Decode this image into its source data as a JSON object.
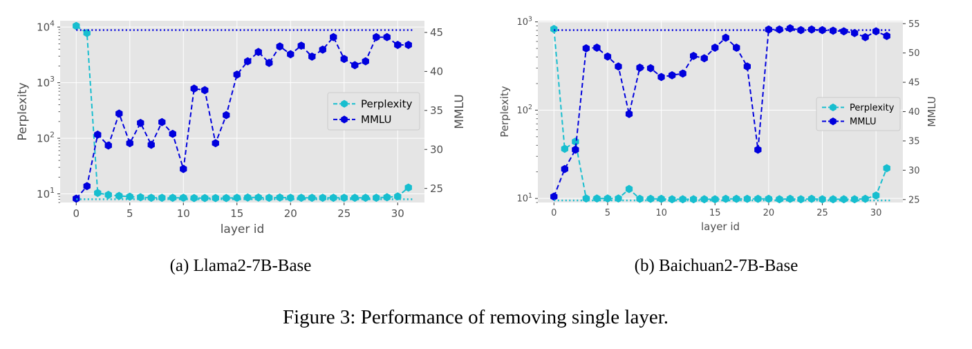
{
  "figure": {
    "caption": "Figure 3: Performance of removing single layer."
  },
  "colors": {
    "panel_bg": "#e5e5e5",
    "grid": "#ffffff",
    "perplexity": "#17becf",
    "mmlu": "#0000dd"
  },
  "chart_data": [
    {
      "type": "line",
      "subcaption": "(a) Llama2-7B-Base",
      "xlabel": "layer id",
      "ylabel_left": "Perplexity",
      "ylabel_right": "MMLU",
      "xticks": [
        0,
        5,
        10,
        15,
        20,
        25,
        30
      ],
      "xlim": [
        -1.5,
        32.5
      ],
      "left_scale": "log",
      "ylim_left": [
        7,
        13000
      ],
      "yticks_left": [
        {
          "value": 10,
          "base": "10",
          "exp": "1"
        },
        {
          "value": 100,
          "base": "10",
          "exp": "2"
        },
        {
          "value": 1000,
          "base": "10",
          "exp": "3"
        },
        {
          "value": 10000,
          "base": "10",
          "exp": "4"
        }
      ],
      "ylim_right": [
        23.2,
        46.5
      ],
      "yticks_right": [
        25,
        30,
        35,
        40,
        45
      ],
      "grid": true,
      "legend_position": "center-right",
      "series": [
        {
          "name": "Perplexity",
          "axis": "left",
          "style": "dashed",
          "marker": "hexagon",
          "x": [
            0,
            1,
            2,
            3,
            4,
            5,
            6,
            7,
            8,
            9,
            10,
            11,
            12,
            13,
            14,
            15,
            16,
            17,
            18,
            19,
            20,
            21,
            22,
            23,
            24,
            25,
            26,
            27,
            28,
            29,
            30,
            31
          ],
          "values": [
            10500,
            7800,
            10.4,
            9.6,
            9.2,
            8.9,
            8.7,
            8.5,
            8.5,
            8.5,
            8.5,
            8.4,
            8.4,
            8.4,
            8.4,
            8.5,
            8.6,
            8.6,
            8.5,
            8.6,
            8.5,
            8.5,
            8.5,
            8.5,
            8.5,
            8.5,
            8.5,
            8.5,
            8.5,
            8.7,
            9.0,
            13.0
          ]
        },
        {
          "name": "MMLU",
          "axis": "right",
          "style": "dashed",
          "marker": "hexagon",
          "x": [
            0,
            1,
            2,
            3,
            4,
            5,
            6,
            7,
            8,
            9,
            10,
            11,
            12,
            13,
            14,
            15,
            16,
            17,
            18,
            19,
            20,
            21,
            22,
            23,
            24,
            25,
            26,
            27,
            28,
            29,
            30,
            31
          ],
          "values": [
            23.7,
            25.3,
            31.9,
            30.5,
            34.6,
            30.8,
            33.4,
            30.6,
            33.5,
            32.0,
            27.5,
            37.8,
            37.6,
            30.8,
            34.4,
            39.6,
            41.3,
            42.5,
            41.1,
            43.2,
            42.2,
            43.3,
            41.9,
            42.8,
            44.4,
            41.6,
            40.8,
            41.3,
            44.4,
            44.4,
            43.4,
            43.4
          ]
        },
        {
          "axis": "left",
          "style": "dotted",
          "color_key": "perplexity",
          "x": [
            0,
            31.5
          ],
          "values": [
            8.0,
            8.0
          ]
        },
        {
          "axis": "right",
          "style": "dotted",
          "color_key": "mmlu",
          "x": [
            0,
            31.5
          ],
          "values": [
            45.3,
            45.3
          ]
        }
      ]
    },
    {
      "type": "line",
      "subcaption": "(b) Baichuan2-7B-Base",
      "xlabel": "layer id",
      "ylabel_left": "Perplexity",
      "ylabel_right": "MMLU",
      "xticks": [
        0,
        5,
        10,
        15,
        20,
        25,
        30
      ],
      "xlim": [
        -1.5,
        32.5
      ],
      "left_scale": "log",
      "ylim_left": [
        9.0,
        1030
      ],
      "yticks_left": [
        {
          "value": 10,
          "base": "10",
          "exp": "1"
        },
        {
          "value": 100,
          "base": "10",
          "exp": "2"
        },
        {
          "value": 1000,
          "base": "10",
          "exp": "3"
        }
      ],
      "ylim_right": [
        24.5,
        55.5
      ],
      "yticks_right": [
        25,
        30,
        35,
        40,
        45,
        50,
        55
      ],
      "grid": true,
      "legend_position": "center-right",
      "series": [
        {
          "name": "Perplexity",
          "axis": "left",
          "style": "dashed",
          "marker": "hexagon",
          "x": [
            0,
            1,
            2,
            3,
            4,
            5,
            6,
            7,
            8,
            9,
            10,
            11,
            12,
            13,
            14,
            15,
            16,
            17,
            18,
            19,
            20,
            21,
            22,
            23,
            24,
            25,
            26,
            27,
            28,
            29,
            30,
            31
          ],
          "values": [
            830,
            36.5,
            44,
            10.0,
            10.0,
            10.0,
            10.0,
            12.8,
            9.9,
            9.9,
            9.9,
            9.8,
            9.8,
            9.8,
            9.8,
            9.8,
            9.9,
            9.9,
            9.9,
            9.9,
            9.9,
            9.8,
            9.9,
            9.8,
            9.9,
            9.8,
            9.8,
            9.8,
            9.8,
            9.9,
            10.8,
            22
          ]
        },
        {
          "name": "MMLU",
          "axis": "right",
          "style": "dashed",
          "marker": "hexagon",
          "x": [
            0,
            1,
            2,
            3,
            4,
            5,
            6,
            7,
            8,
            9,
            10,
            11,
            12,
            13,
            14,
            15,
            16,
            17,
            18,
            19,
            20,
            21,
            22,
            23,
            24,
            25,
            26,
            27,
            28,
            29,
            30,
            31
          ],
          "values": [
            25.5,
            30.2,
            33.5,
            50.8,
            50.9,
            49.4,
            47.7,
            39.6,
            47.5,
            47.4,
            45.9,
            46.2,
            46.5,
            49.5,
            49.1,
            50.9,
            52.6,
            50.9,
            47.7,
            33.5,
            54.0,
            54.0,
            54.2,
            53.9,
            54.0,
            53.9,
            53.8,
            53.7,
            53.4,
            52.7,
            53.7,
            52.9
          ]
        },
        {
          "axis": "left",
          "style": "dotted",
          "color_key": "perplexity",
          "x": [
            0,
            31.5
          ],
          "values": [
            9.5,
            9.5
          ]
        },
        {
          "axis": "right",
          "style": "dotted",
          "color_key": "mmlu",
          "x": [
            0,
            31.5
          ],
          "values": [
            53.9,
            53.9
          ]
        }
      ]
    }
  ]
}
